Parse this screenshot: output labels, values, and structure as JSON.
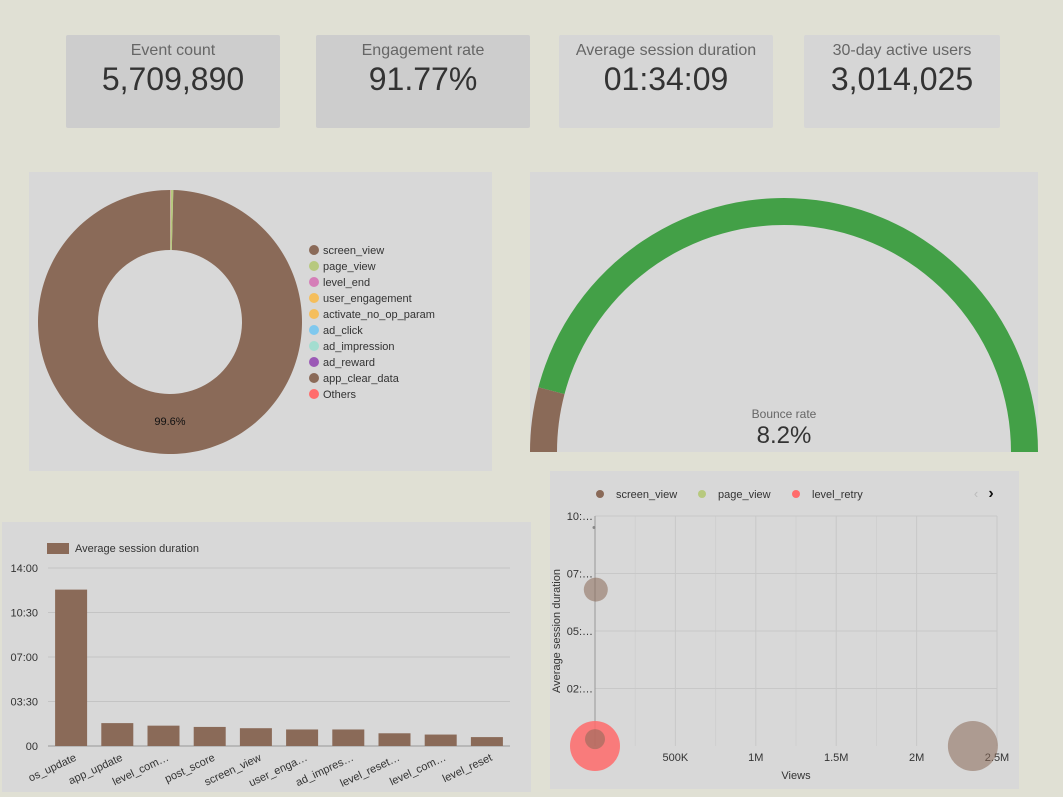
{
  "kpis": [
    {
      "label": "Event count",
      "value": "5,709,890"
    },
    {
      "label": "Engagement rate",
      "value": "91.77%"
    },
    {
      "label": "Average session duration",
      "value": "01:34:09"
    },
    {
      "label": "30-day active users",
      "value": "3,014,025"
    }
  ],
  "colors": {
    "brown": "#8a6a58",
    "green_light": "#b7c97e",
    "pink": "#d57eb8",
    "orange": "#f5be5c",
    "blue": "#7fc8ee",
    "teal": "#a3ddd0",
    "purple": "#9b59b6",
    "red": "#ff6b6b",
    "gauge_green": "#43a047"
  },
  "chart_data": [
    {
      "type": "pie",
      "variant": "donut",
      "legend_position": "right",
      "slice_label": "99.6%",
      "categories": [
        "screen_view",
        "page_view",
        "level_end",
        "user_engagement",
        "activate_no_op_param",
        "ad_click",
        "ad_impression",
        "ad_reward",
        "app_clear_data",
        "Others"
      ],
      "values": [
        99.6,
        0.3,
        0.02,
        0.02,
        0.01,
        0.01,
        0.01,
        0.01,
        0.01,
        0.01
      ],
      "colors": [
        "#8a6a58",
        "#b7c97e",
        "#d57eb8",
        "#f5be5c",
        "#f5be5c",
        "#7fc8ee",
        "#a3ddd0",
        "#9b59b6",
        "#8a6a58",
        "#ff6b6b"
      ]
    },
    {
      "type": "gauge",
      "label": "Bounce rate",
      "value_text": "8.2%",
      "value": 8.2,
      "min": 0,
      "max": 100
    },
    {
      "type": "bar",
      "legend": "Average session duration",
      "legend_position": "top-left",
      "categories": [
        "os_update",
        "app_update",
        "level_com…",
        "post_score",
        "screen_view",
        "user_enga…",
        "ad_impres…",
        "level_reset…",
        "level_com…",
        "level_reset"
      ],
      "values": [
        12.3,
        1.8,
        1.6,
        1.5,
        1.4,
        1.3,
        1.3,
        1.0,
        0.9,
        0.7
      ],
      "ylim": [
        0,
        14
      ],
      "y_ticks": [
        0,
        3.5,
        7,
        10.5,
        14
      ],
      "y_tick_labels": [
        "00",
        "03:30",
        "07:00",
        "10:30",
        "14:00"
      ],
      "grid": true
    },
    {
      "type": "scatter",
      "variant": "bubble",
      "xlabel": "Views",
      "ylabel": "Average session duration",
      "legend_position": "top",
      "series": [
        {
          "name": "screen_view",
          "color": "#8a6a58",
          "points": [
            {
              "x": 2350000,
              "y": 0,
              "r": 25
            },
            {
              "x": 5000,
              "y": 6.8,
              "r": 12
            },
            {
              "x": 0,
              "y": 0.3,
              "r": 10
            }
          ]
        },
        {
          "name": "page_view",
          "color": "#b7c97e",
          "points": []
        },
        {
          "name": "level_retry",
          "color": "#ff6b6b",
          "points": [
            {
              "x": 0,
              "y": 0,
              "r": 25
            }
          ]
        }
      ],
      "xlim": [
        0,
        2500000
      ],
      "x_ticks": [
        500000,
        1000000,
        1500000,
        2000000,
        2500000
      ],
      "x_tick_labels": [
        "500K",
        "1M",
        "1.5M",
        "2M",
        "2.5M"
      ],
      "ylim": [
        0,
        10
      ],
      "y_ticks": [
        2.5,
        5,
        7.5,
        10
      ],
      "y_tick_labels": [
        "02:…",
        "05:…",
        "07:…",
        "10:…"
      ],
      "grid": true
    }
  ]
}
